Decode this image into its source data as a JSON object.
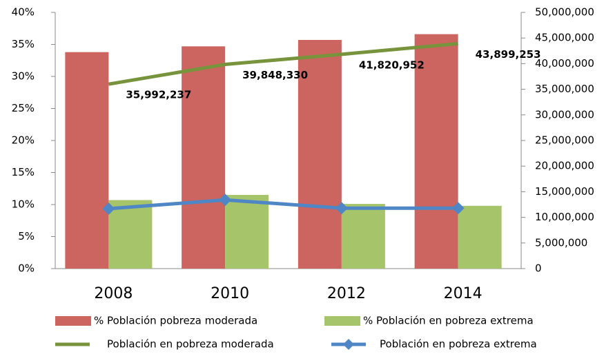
{
  "chart_data": {
    "type": "bar-line",
    "categories": [
      "2008",
      "2010",
      "2012",
      "2014"
    ],
    "series": [
      {
        "name": "% Población pobreza moderada",
        "type": "bar",
        "color": "#cc6560",
        "values": [
          33.8,
          34.7,
          35.7,
          36.6
        ]
      },
      {
        "name": "% Población en pobreza extrema",
        "type": "bar",
        "color": "#a6c46a",
        "values": [
          10.7,
          11.5,
          10.1,
          9.8
        ]
      },
      {
        "name": "Población en pobreza moderada",
        "type": "line",
        "axis": "y2",
        "color": "#77933c",
        "values": [
          35992237,
          39848330,
          41820952,
          43899253
        ],
        "value_labels": [
          "35,992,237",
          "39,848,330",
          "41,820,952",
          "43,899,253"
        ]
      },
      {
        "name": "Población en pobreza extrema",
        "type": "line",
        "axis": "y2",
        "color": "#4f86c6",
        "marker": "diamond",
        "values": [
          11700000,
          13400000,
          11800000,
          11800000
        ]
      }
    ],
    "ylim": [
      0,
      40
    ],
    "yticks": [
      {
        "value": 0,
        "label": "0%"
      },
      {
        "value": 5,
        "label": "5%"
      },
      {
        "value": 10,
        "label": "10%"
      },
      {
        "value": 15,
        "label": "15%"
      },
      {
        "value": 20,
        "label": "20%"
      },
      {
        "value": 25,
        "label": "25%"
      },
      {
        "value": 30,
        "label": "30%"
      },
      {
        "value": 35,
        "label": "35%"
      },
      {
        "value": 40,
        "label": "40%"
      }
    ],
    "y2lim": [
      0,
      50000000
    ],
    "y2ticks": [
      0,
      {
        "value": 5000000,
        "label": "5,000,000"
      },
      {
        "value": 10000000,
        "label": "10,000,000"
      },
      {
        "value": 15000000,
        "label": "15,000,000"
      },
      {
        "value": 20000000,
        "label": "20,000,000"
      },
      {
        "value": 25000000,
        "label": "25,000,000"
      },
      {
        "value": 30000000,
        "label": "30,000,000"
      },
      {
        "value": 35000000,
        "label": "35,000,000"
      },
      {
        "value": 40000000,
        "label": "40,000,000"
      },
      {
        "value": 45000000,
        "label": "45,000,000"
      },
      {
        "value": 50000000,
        "label": "50,000,000"
      }
    ],
    "legend": "bottom",
    "grid": false
  }
}
